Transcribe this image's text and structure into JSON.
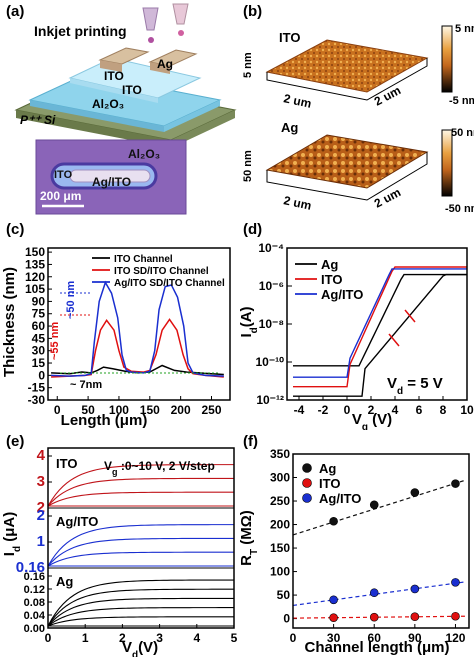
{
  "panel_labels": {
    "a": "(a)",
    "b": "(b)",
    "c": "(c)",
    "d": "(d)",
    "e": "(e)",
    "f": "(f)"
  },
  "panel_a": {
    "title": "Inkjet printing",
    "layer_ito_top": "ITO",
    "layer_ag": "Ag",
    "layer_ito": "ITO",
    "layer_al2o3": "Al₂O₃",
    "layer_si": "P⁺⁺ Si",
    "micro_al2o3": "Al₂O₃",
    "micro_ito": "ITO",
    "micro_agito": "Ag/ITO",
    "scalebar": "200 μm",
    "colors": {
      "si": "#8a9a6a",
      "al2o3": "#8fd4ec",
      "ito": "#c9eefb",
      "ag": "#d8c0a0",
      "micro_bg": "#8a64b8"
    }
  },
  "panel_b": {
    "ito_label": "ITO",
    "ag_label": "Ag",
    "ito_zaxis": "5 nm",
    "ag_zaxis": "50 nm",
    "ito_cb_max": "5 nm",
    "ito_cb_min": "-5 nm",
    "ag_cb_max": "50 nm",
    "ag_cb_min": "-50 nm",
    "axis_label": "2 um",
    "colors": {
      "cb_top": "#fff8e6",
      "cb_mid": "#d27a1e",
      "cb_bot": "#000000",
      "surface": "#c2661c"
    }
  },
  "chart_data": [
    {
      "panel": "c",
      "type": "line",
      "xlabel": "Length (μm)",
      "ylabel": "Thickness (nm)",
      "xlim": [
        -15,
        280
      ],
      "ylim": [
        -30,
        155
      ],
      "xticks": [
        0,
        50,
        100,
        150,
        200,
        250
      ],
      "yticks": [
        -30,
        -15,
        0,
        15,
        30,
        45,
        60,
        75,
        90,
        105,
        120,
        135,
        150
      ],
      "series": [
        {
          "name": "ITO Channel",
          "color": "#000000",
          "x": [
            -10,
            20,
            40,
            55,
            65,
            75,
            90,
            110,
            130,
            150,
            170,
            190,
            210,
            230,
            250,
            270
          ],
          "y": [
            3,
            2,
            4,
            3,
            6,
            10,
            8,
            5,
            3,
            4,
            12,
            6,
            4,
            3,
            2,
            1
          ]
        },
        {
          "name": "ITO SD/ITO Channel",
          "color": "#e01010",
          "x": [
            -10,
            20,
            45,
            55,
            62,
            70,
            80,
            92,
            100,
            108,
            120,
            140,
            150,
            160,
            170,
            182,
            194,
            204,
            212,
            220,
            240,
            270
          ],
          "y": [
            -2,
            -1,
            0,
            1,
            30,
            55,
            67,
            55,
            30,
            10,
            5,
            4,
            6,
            25,
            55,
            68,
            55,
            25,
            8,
            2,
            0,
            -2
          ]
        },
        {
          "name": "Ag/ITO SD/ITO Channel",
          "color": "#1a2fd0",
          "x": [
            -10,
            20,
            45,
            55,
            60,
            68,
            78,
            88,
            98,
            105,
            112,
            120,
            140,
            150,
            158,
            165,
            175,
            185,
            195,
            205,
            212,
            220,
            240,
            270
          ],
          "y": [
            0,
            -1,
            0,
            2,
            40,
            90,
            113,
            100,
            70,
            25,
            6,
            4,
            3,
            5,
            30,
            80,
            108,
            110,
            95,
            60,
            15,
            3,
            0,
            -1
          ]
        }
      ],
      "annotations": {
        "step50": "~50 nm",
        "step55": "~55 nm",
        "step7": "~ 7nm"
      }
    },
    {
      "panel": "d",
      "type": "line",
      "xlabel": "V₉ (V)",
      "xlabel_main": "V",
      "xlabel_sub": "g",
      "xlabel_unit": " (V)",
      "ylabel_main": "I",
      "ylabel_sub": "d",
      "ylabel_unit": "(A)",
      "scale_y": "log",
      "xlim": [
        -5,
        10
      ],
      "ylim_exp": [
        -12,
        -4
      ],
      "xticks": [
        -4,
        -2,
        0,
        2,
        4,
        6,
        8,
        10
      ],
      "ytick_labels": [
        "10⁻¹²",
        "10⁻¹⁰",
        "10⁻⁸",
        "10⁻⁶",
        "10⁻⁴"
      ],
      "annotation": "V₀ = 5 V",
      "annot_main": "V",
      "annot_sub": "d",
      "annot_rest": " = 5 V",
      "series": [
        {
          "name": "Ag",
          "color": "#000000"
        },
        {
          "name": "ITO",
          "color": "#e01010"
        },
        {
          "name": "Ag/ITO",
          "color": "#1a2fd0"
        }
      ]
    },
    {
      "panel": "e",
      "type": "line",
      "xlabel_main": "V",
      "xlabel_sub": "d",
      "xlabel_unit": "(V)",
      "ylabel_main": "I",
      "ylabel_sub": "d",
      "ylabel_unit": " (μA)",
      "xlim": [
        0,
        5
      ],
      "xticks": [
        0,
        1,
        2,
        3,
        4,
        5
      ],
      "note": "V₉ :0~10 V, 2 V/step",
      "note_main": "V",
      "note_sub": "g",
      "note_rest": " :0~10 V, 2 V/step",
      "groups": [
        {
          "name": "ITO",
          "color": "#c0141a",
          "tick_labels": [
            "2",
            "3",
            "4"
          ],
          "tick_color": "#c0141a"
        },
        {
          "name": "Ag/ITO",
          "color": "#1a2fd0",
          "tick_labels": [
            "0.16",
            "1",
            "2"
          ],
          "tick_color": "#1a2fd0"
        },
        {
          "name": "Ag",
          "color": "#000000",
          "tick_labels": [
            "0.00",
            "0.04",
            "0.08",
            "0.12",
            "0.16"
          ],
          "tick_color": "#000000"
        }
      ]
    },
    {
      "panel": "f",
      "type": "scatter",
      "xlabel": "Channel length (μm)",
      "ylabel_main": "R",
      "ylabel_sub": "T",
      "ylabel_unit": " (MΩ)",
      "xlim": [
        0,
        130
      ],
      "ylim": [
        -20,
        350
      ],
      "xticks": [
        0,
        30,
        60,
        90,
        120
      ],
      "yticks": [
        0,
        50,
        100,
        150,
        200,
        250,
        300,
        350
      ],
      "series": [
        {
          "name": "Ag",
          "color": "#111111",
          "x": [
            30,
            60,
            90,
            120
          ],
          "y": [
            207,
            242,
            268,
            287
          ],
          "fit": [
            178,
            294
          ]
        },
        {
          "name": "ITO",
          "color": "#e01010",
          "x": [
            30,
            60,
            90,
            120
          ],
          "y": [
            2,
            3,
            4,
            5
          ],
          "fit": [
            1,
            5
          ]
        },
        {
          "name": "Ag/ITO",
          "color": "#1a2fd0",
          "x": [
            30,
            60,
            90,
            120
          ],
          "y": [
            40,
            55,
            63,
            77
          ],
          "fit": [
            28,
            78
          ]
        }
      ]
    }
  ]
}
